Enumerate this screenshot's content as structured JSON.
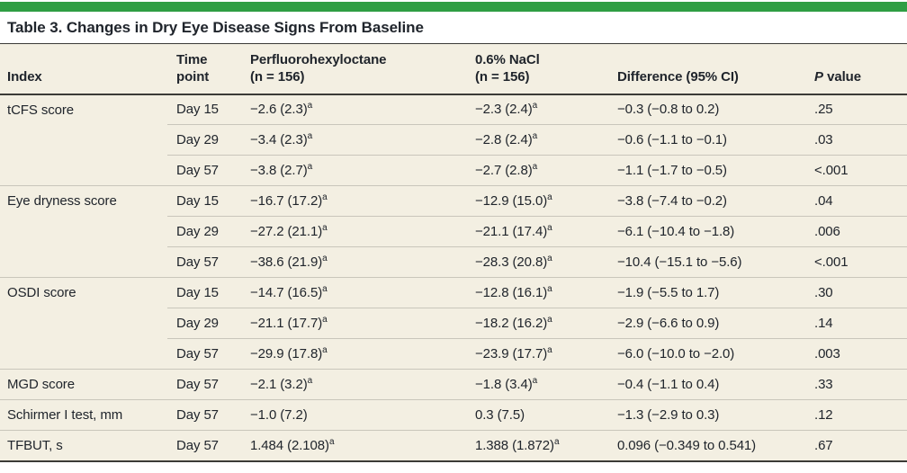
{
  "colors": {
    "accent": "#2f9e43",
    "table_bg": "#f3efe2",
    "text": "#20252c",
    "rule_dark": "#3b3b37",
    "rule_light": "#c9c6bb"
  },
  "title": "Table 3. Changes in Dry Eye Disease Signs From Baseline",
  "header": {
    "index": "Index",
    "time_line1": "Time",
    "time_line2": "point",
    "pfho_line1": "Perfluorohexyloctane",
    "pfho_line2": "(n = 156)",
    "nacl_line1": "0.6% NaCl",
    "nacl_line2": "(n = 156)",
    "diff": "Difference (95% CI)",
    "p_italic": "P",
    "p_rest": "value"
  },
  "footnote_marker": "a",
  "rows": [
    {
      "index": "tCFS score",
      "time": "Day 15",
      "pfho": "−2.6 (2.3)",
      "pfho_sup": "a",
      "nacl": "−2.3 (2.4)",
      "nacl_sup": "a",
      "diff": "−0.3 (−0.8 to 0.2)",
      "p": ".25",
      "group_start": true
    },
    {
      "index": "",
      "time": "Day 29",
      "pfho": "−3.4 (2.3)",
      "pfho_sup": "a",
      "nacl": "−2.8 (2.4)",
      "nacl_sup": "a",
      "diff": "−0.6 (−1.1 to −0.1)",
      "p": ".03",
      "group_start": false
    },
    {
      "index": "",
      "time": "Day 57",
      "pfho": "−3.8 (2.7)",
      "pfho_sup": "a",
      "nacl": "−2.7 (2.8)",
      "nacl_sup": "a",
      "diff": "−1.1 (−1.7 to −0.5)",
      "p": "<.001",
      "group_start": false
    },
    {
      "index": "Eye dryness score",
      "time": "Day 15",
      "pfho": "−16.7 (17.2)",
      "pfho_sup": "a",
      "nacl": "−12.9 (15.0)",
      "nacl_sup": "a",
      "diff": "−3.8 (−7.4 to −0.2)",
      "p": ".04",
      "group_start": true
    },
    {
      "index": "",
      "time": "Day 29",
      "pfho": "−27.2 (21.1)",
      "pfho_sup": "a",
      "nacl": "−21.1 (17.4)",
      "nacl_sup": "a",
      "diff": "−6.1 (−10.4 to −1.8)",
      "p": ".006",
      "group_start": false
    },
    {
      "index": "",
      "time": "Day 57",
      "pfho": "−38.6 (21.9)",
      "pfho_sup": "a",
      "nacl": "−28.3 (20.8)",
      "nacl_sup": "a",
      "diff": "−10.4 (−15.1 to −5.6)",
      "p": "<.001",
      "group_start": false
    },
    {
      "index": "OSDI score",
      "time": "Day 15",
      "pfho": "−14.7 (16.5)",
      "pfho_sup": "a",
      "nacl": "−12.8 (16.1)",
      "nacl_sup": "a",
      "diff": "−1.9 (−5.5 to 1.7)",
      "p": ".30",
      "group_start": true
    },
    {
      "index": "",
      "time": "Day 29",
      "pfho": "−21.1 (17.7)",
      "pfho_sup": "a",
      "nacl": "−18.2 (16.2)",
      "nacl_sup": "a",
      "diff": "−2.9 (−6.6 to 0.9)",
      "p": ".14",
      "group_start": false
    },
    {
      "index": "",
      "time": "Day 57",
      "pfho": "−29.9 (17.8)",
      "pfho_sup": "a",
      "nacl": "−23.9 (17.7)",
      "nacl_sup": "a",
      "diff": "−6.0 (−10.0 to −2.0)",
      "p": ".003",
      "group_start": false
    },
    {
      "index": "MGD score",
      "time": "Day 57",
      "pfho": "−2.1 (3.2)",
      "pfho_sup": "a",
      "nacl": "−1.8 (3.4)",
      "nacl_sup": "a",
      "diff": "−0.4 (−1.1 to 0.4)",
      "p": ".33",
      "group_start": true
    },
    {
      "index": "Schirmer I test, mm",
      "time": "Day 57",
      "pfho": "−1.0 (7.2)",
      "pfho_sup": "",
      "nacl": "0.3 (7.5)",
      "nacl_sup": "",
      "diff": "−1.3 (−2.9 to 0.3)",
      "p": ".12",
      "group_start": true
    },
    {
      "index": "TFBUT, s",
      "time": "Day 57",
      "pfho": "1.484 (2.108)",
      "pfho_sup": "a",
      "nacl": "1.388 (1.872)",
      "nacl_sup": "a",
      "diff": "0.096 (−0.349 to 0.541)",
      "p": ".67",
      "group_start": true
    }
  ]
}
